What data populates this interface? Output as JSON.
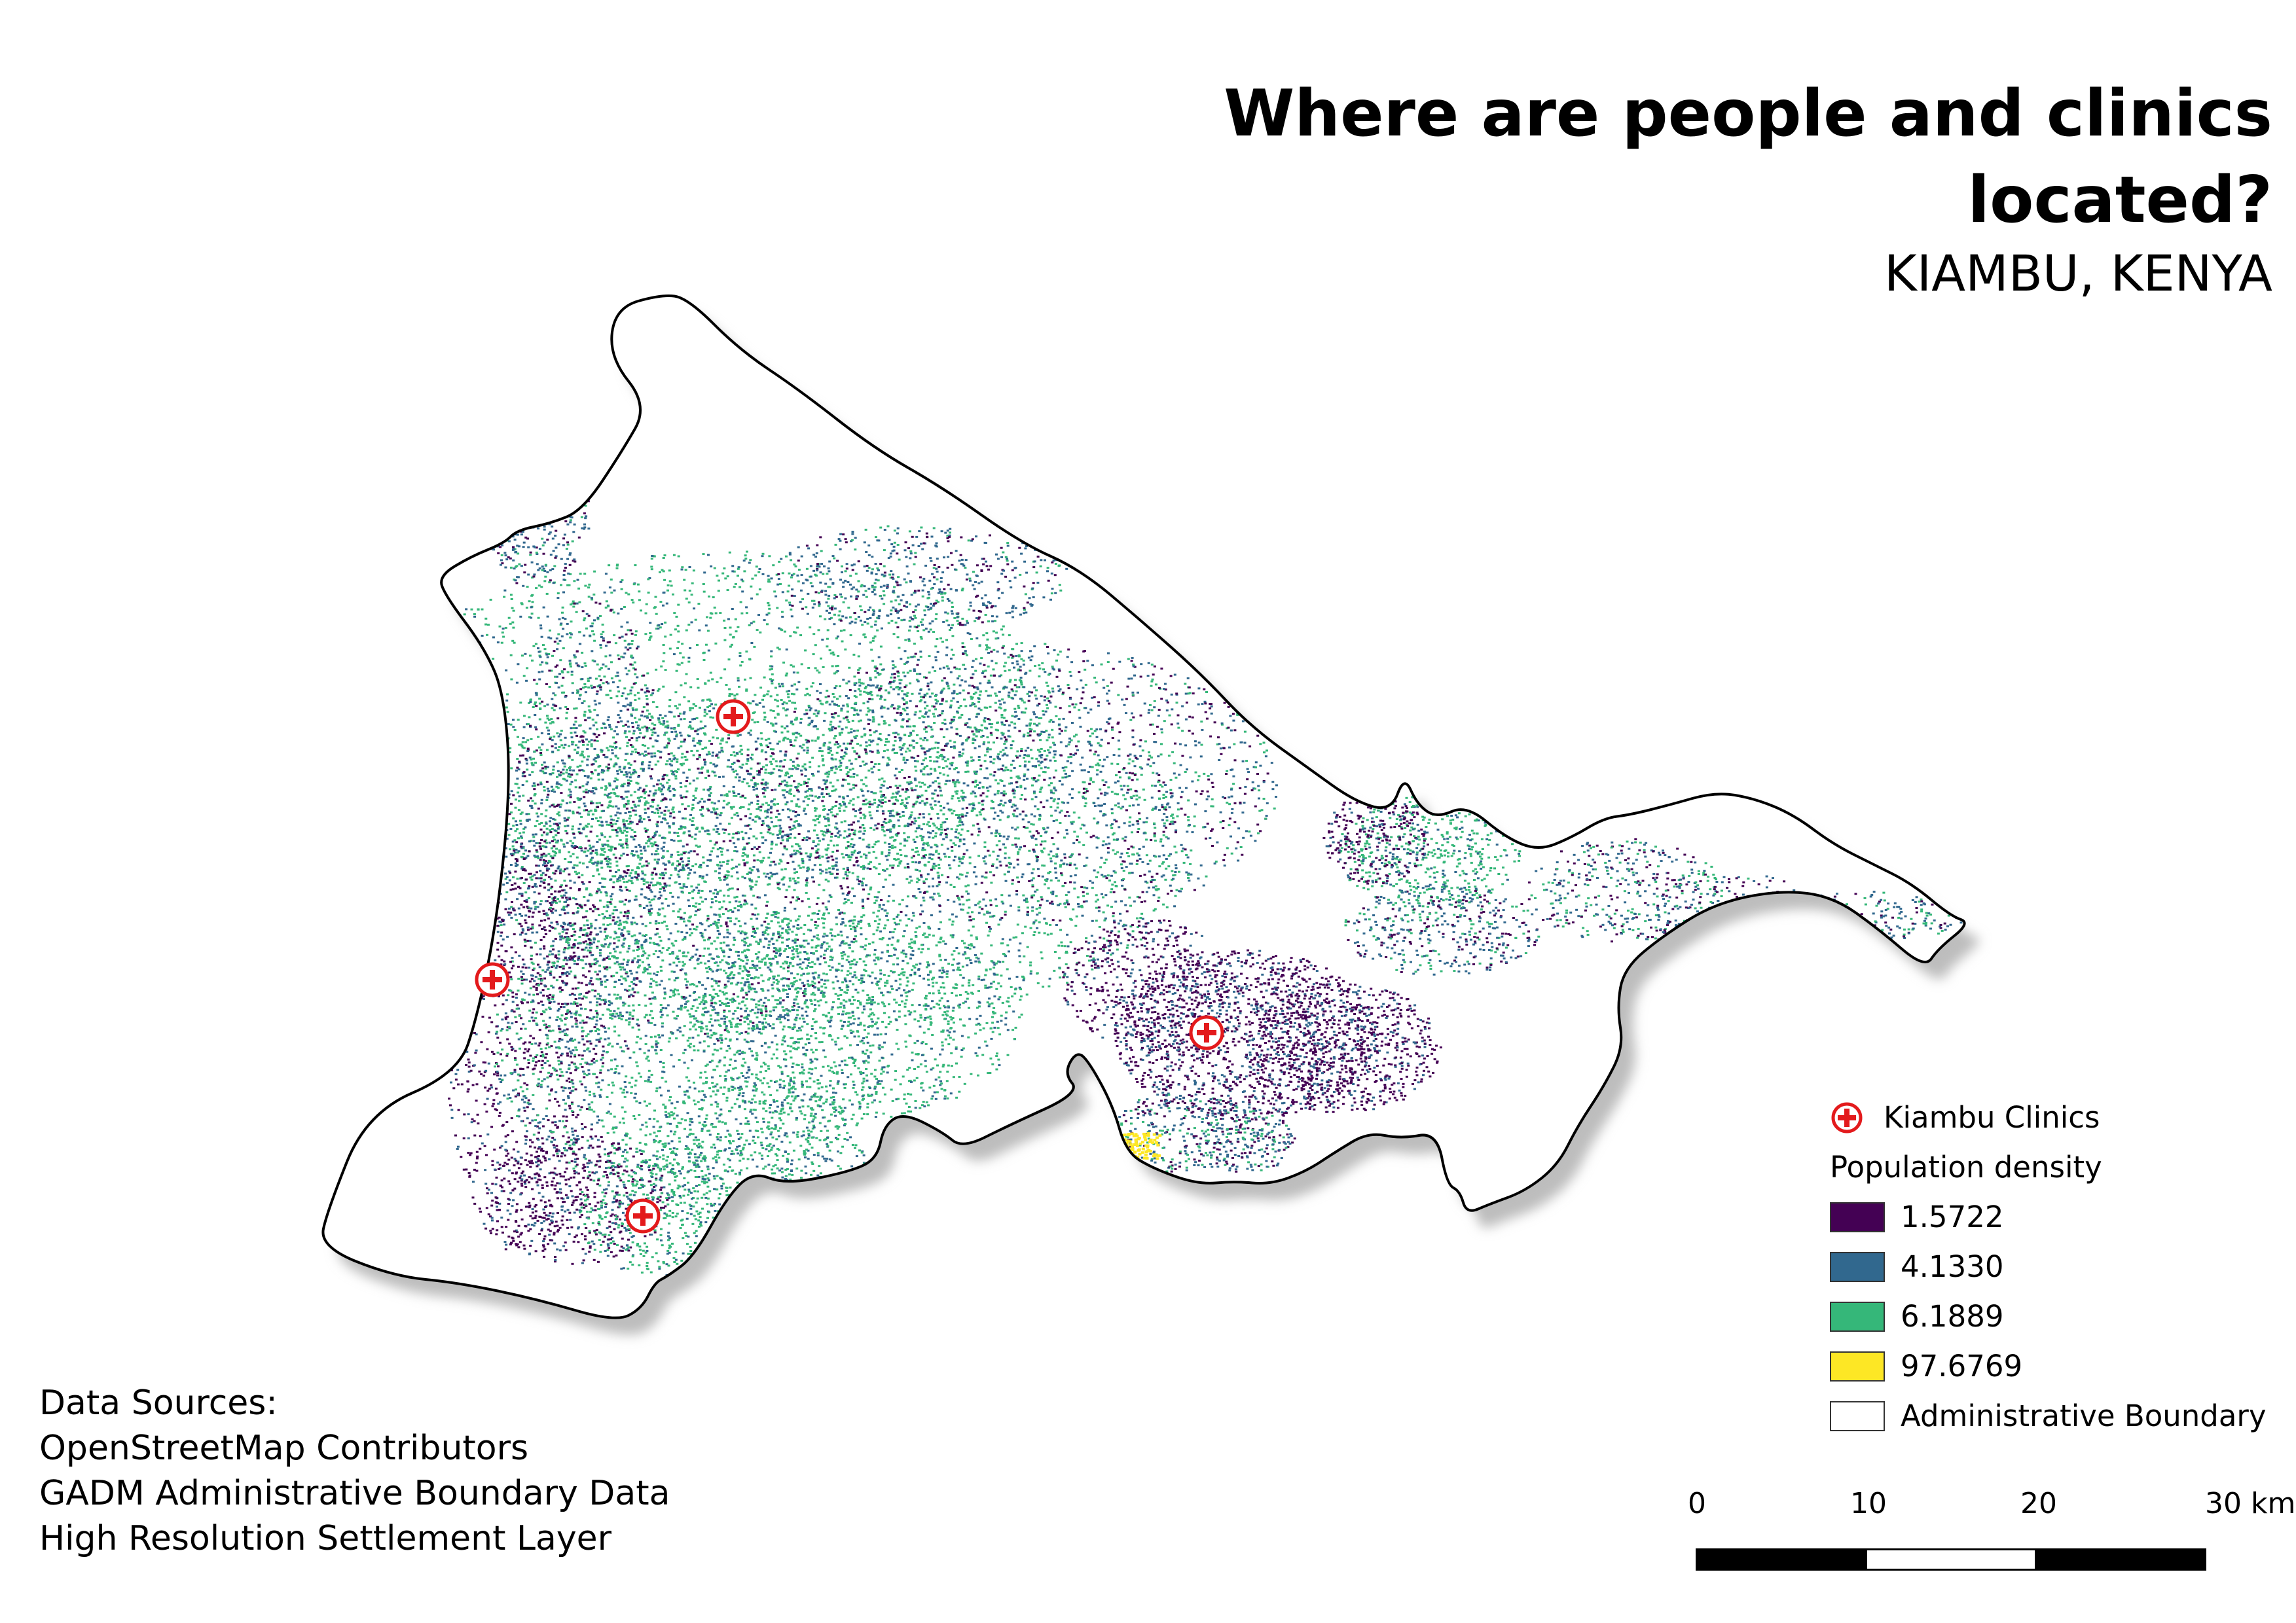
{
  "title": "Where are people and clinics located?",
  "subtitle": "KIAMBU, KENYA",
  "legend": {
    "clinics_label": "Kiambu Clinics",
    "density_heading": "Population density",
    "classes": [
      {
        "label": "1.5722",
        "color": "#440154"
      },
      {
        "label": "4.1330",
        "color": "#31688e"
      },
      {
        "label": "6.1889",
        "color": "#35b779"
      },
      {
        "label": "97.6769",
        "color": "#fde725"
      }
    ],
    "boundary_label": "Administrative Boundary"
  },
  "sources": {
    "heading": "Data Sources:",
    "lines": [
      "OpenStreetMap Contributors",
      "GADM Administrative Boundary Data",
      "High Resolution Settlement Layer"
    ]
  },
  "scalebar": {
    "ticks": [
      "0",
      "10",
      "20",
      "30 km"
    ]
  },
  "colors": {
    "clinic": "#e31a1c",
    "boundary": "#000000",
    "shadow": "#cccccc"
  },
  "icons": {
    "clinic": "red-cross-circle-icon"
  }
}
